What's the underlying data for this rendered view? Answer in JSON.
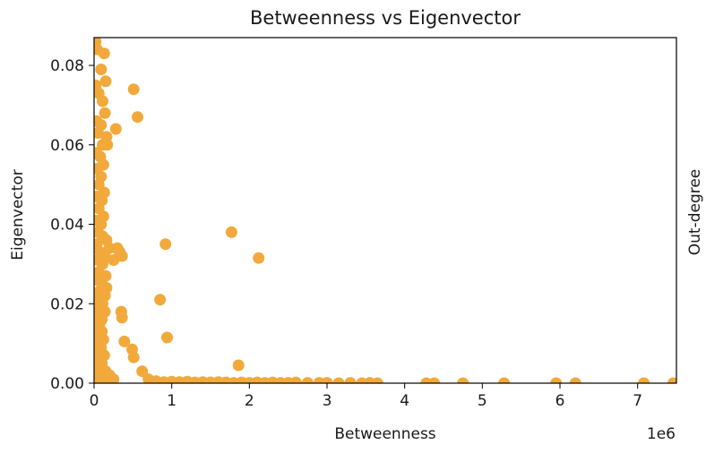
{
  "chart_data": {
    "type": "scatter",
    "title": "Betweenness vs Eigenvector",
    "xlabel": "Betweenness",
    "ylabel": "Eigenvector",
    "y2label": "Out-degree",
    "x_offset_label": "1e6",
    "xlim": [
      0,
      7500000
    ],
    "ylim": [
      0,
      0.087
    ],
    "x_ticks": [
      0,
      1000000,
      2000000,
      3000000,
      4000000,
      5000000,
      6000000,
      7000000
    ],
    "x_tick_labels": [
      "0",
      "1",
      "2",
      "3",
      "4",
      "5",
      "6",
      "7"
    ],
    "y_ticks": [
      0,
      0.02,
      0.04,
      0.06,
      0.08
    ],
    "y_tick_labels": [
      "0.00",
      "0.02",
      "0.04",
      "0.06",
      "0.08"
    ],
    "grid": false,
    "marker_color": "#f2a93b",
    "series": [
      {
        "points": [
          [
            20000,
            0.086
          ],
          [
            40000,
            0.084
          ],
          [
            130000,
            0.083
          ],
          [
            90000,
            0.079
          ],
          [
            150000,
            0.076
          ],
          [
            20000,
            0.075
          ],
          [
            60000,
            0.073
          ],
          [
            110000,
            0.071
          ],
          [
            140000,
            0.068
          ],
          [
            30000,
            0.066
          ],
          [
            90000,
            0.065
          ],
          [
            50000,
            0.063
          ],
          [
            160000,
            0.062
          ],
          [
            110000,
            0.06
          ],
          [
            170000,
            0.06
          ],
          [
            30000,
            0.058
          ],
          [
            80000,
            0.057
          ],
          [
            120000,
            0.055
          ],
          [
            40000,
            0.054
          ],
          [
            90000,
            0.052
          ],
          [
            60000,
            0.05
          ],
          [
            130000,
            0.048
          ],
          [
            30000,
            0.047
          ],
          [
            100000,
            0.046
          ],
          [
            60000,
            0.044
          ],
          [
            120000,
            0.042
          ],
          [
            20000,
            0.041
          ],
          [
            90000,
            0.04
          ],
          [
            50000,
            0.038
          ],
          [
            110000,
            0.037
          ],
          [
            160000,
            0.036
          ],
          [
            30000,
            0.035
          ],
          [
            200000,
            0.034
          ],
          [
            80000,
            0.033
          ],
          [
            140000,
            0.032
          ],
          [
            50000,
            0.031
          ],
          [
            110000,
            0.03
          ],
          [
            60000,
            0.028
          ],
          [
            150000,
            0.027
          ],
          [
            30000,
            0.026
          ],
          [
            100000,
            0.025
          ],
          [
            160000,
            0.024
          ],
          [
            60000,
            0.023
          ],
          [
            140000,
            0.022
          ],
          [
            20000,
            0.021
          ],
          [
            110000,
            0.02
          ],
          [
            70000,
            0.019
          ],
          [
            140000,
            0.018
          ],
          [
            40000,
            0.017
          ],
          [
            100000,
            0.016
          ],
          [
            70000,
            0.015
          ],
          [
            30000,
            0.014
          ],
          [
            100000,
            0.013
          ],
          [
            60000,
            0.012
          ],
          [
            120000,
            0.011
          ],
          [
            40000,
            0.01
          ],
          [
            90000,
            0.009
          ],
          [
            60000,
            0.008
          ],
          [
            130000,
            0.007
          ],
          [
            30000,
            0.006
          ],
          [
            100000,
            0.005
          ],
          [
            60000,
            0.004
          ],
          [
            150000,
            0.003
          ],
          [
            30000,
            0.002
          ],
          [
            120000,
            0.001
          ],
          [
            200000,
            0.002
          ],
          [
            250000,
            0.001
          ],
          [
            80000,
            0.0
          ],
          [
            180000,
            0.0
          ],
          [
            510000,
            0.074
          ],
          [
            560000,
            0.067
          ],
          [
            280000,
            0.064
          ],
          [
            300000,
            0.034
          ],
          [
            330000,
            0.033
          ],
          [
            360000,
            0.032
          ],
          [
            250000,
            0.031
          ],
          [
            920000,
            0.035
          ],
          [
            1770000,
            0.038
          ],
          [
            2120000,
            0.0315
          ],
          [
            850000,
            0.021
          ],
          [
            350000,
            0.018
          ],
          [
            360000,
            0.0165
          ],
          [
            940000,
            0.0115
          ],
          [
            390000,
            0.0105
          ],
          [
            490000,
            0.0085
          ],
          [
            510000,
            0.0065
          ],
          [
            620000,
            0.003
          ],
          [
            1860000,
            0.0045
          ],
          [
            700000,
            0.001
          ],
          [
            800000,
            0.0005
          ],
          [
            900000,
            0.0003
          ],
          [
            1000000,
            0.0004
          ],
          [
            1100000,
            0.0003
          ],
          [
            1200000,
            0.0004
          ],
          [
            1300000,
            0.0002
          ],
          [
            1400000,
            0.0003
          ],
          [
            1500000,
            0.0002
          ],
          [
            1600000,
            0.0003
          ],
          [
            1700000,
            0.0002
          ],
          [
            1800000,
            0.0001
          ],
          [
            1900000,
            0.0002
          ],
          [
            2000000,
            0.0001
          ],
          [
            2100000,
            0.0002
          ],
          [
            2200000,
            0.0001
          ],
          [
            2300000,
            0.0002
          ],
          [
            2400000,
            0.0001
          ],
          [
            2500000,
            0.0001
          ],
          [
            2600000,
            0.0002
          ],
          [
            2750000,
            0.0001
          ],
          [
            2900000,
            0.0001
          ],
          [
            3000000,
            0.0001
          ],
          [
            3150000,
            0.0
          ],
          [
            3300000,
            0.0001
          ],
          [
            3450000,
            0.0
          ],
          [
            3550000,
            0.0001
          ],
          [
            3650000,
            0.0
          ],
          [
            4280000,
            0.0
          ],
          [
            4380000,
            0.0
          ],
          [
            4750000,
            0.0
          ],
          [
            5280000,
            0.0
          ],
          [
            5950000,
            0.0
          ],
          [
            6200000,
            0.0
          ],
          [
            7080000,
            0.0
          ],
          [
            7460000,
            0.0
          ]
        ]
      }
    ]
  }
}
